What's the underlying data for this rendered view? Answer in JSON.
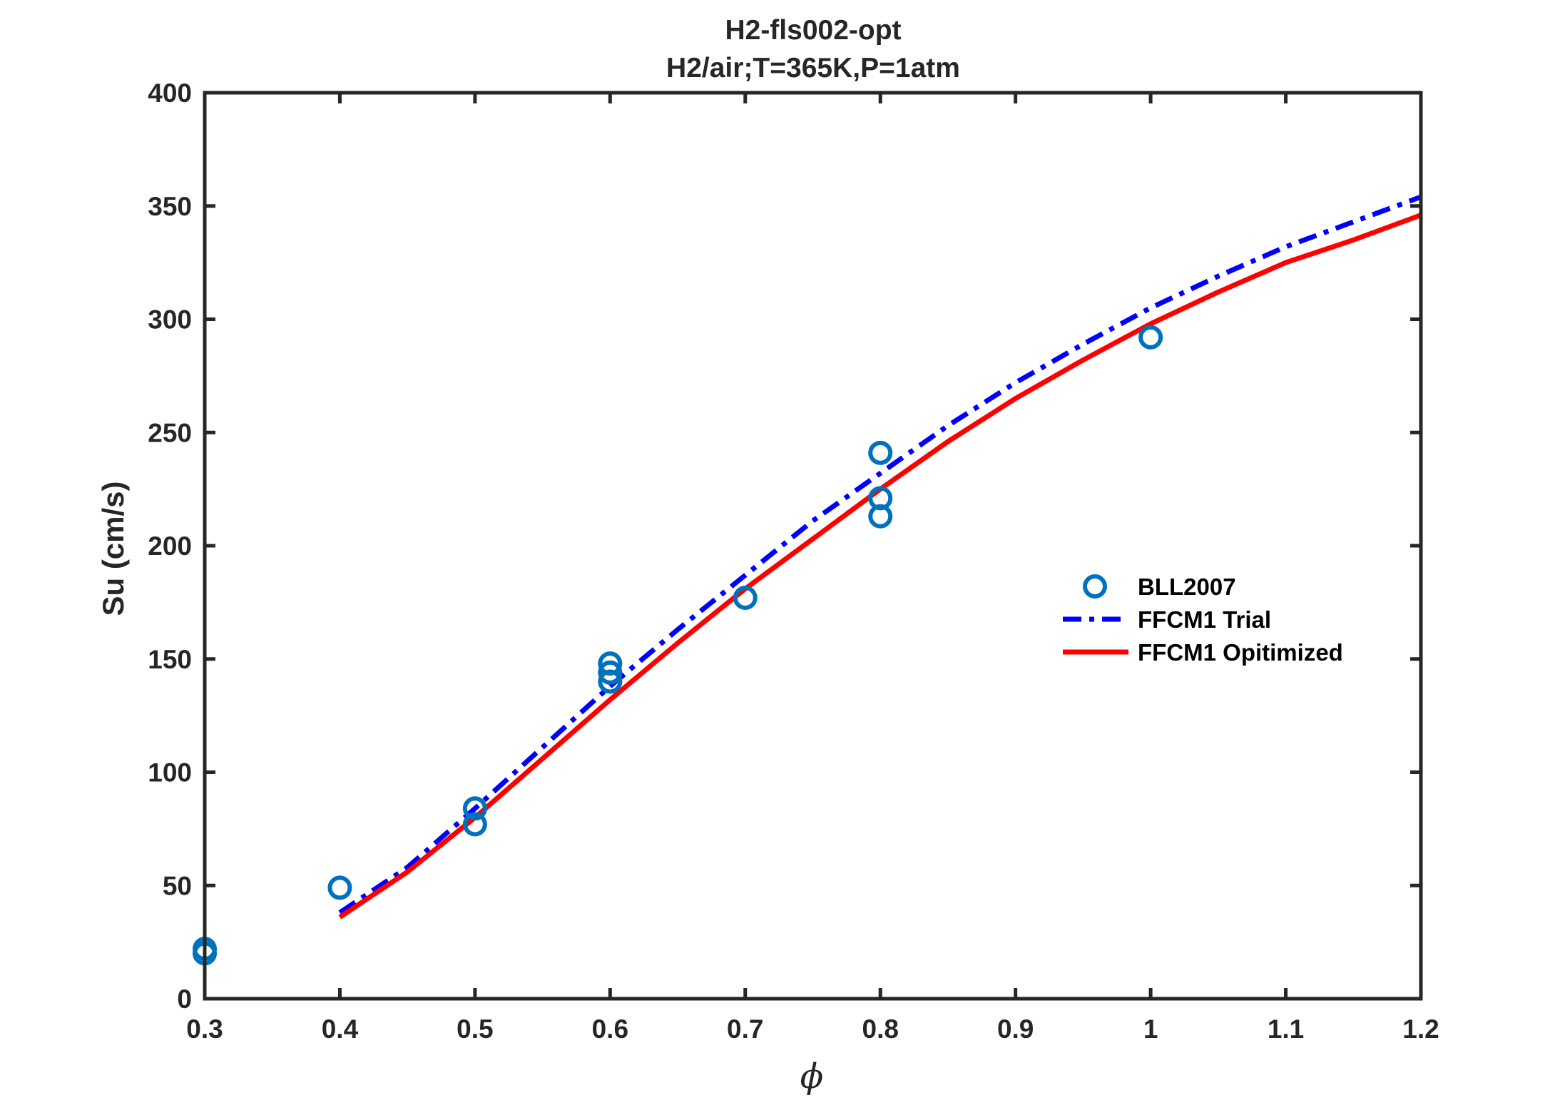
{
  "chart_data": {
    "type": "line",
    "title_lines": [
      "H2-fls002-opt",
      "H2/air;T=365K,P=1atm"
    ],
    "xlabel": "ϕ",
    "ylabel": "Su (cm/s)",
    "xlim": [
      0.3,
      1.2
    ],
    "ylim": [
      0,
      400
    ],
    "xticks": [
      0.3,
      0.4,
      0.5,
      0.6,
      0.7,
      0.8,
      0.9,
      1.0,
      1.1,
      1.2
    ],
    "xtick_labels": [
      "0.3",
      "0.4",
      "0.5",
      "0.6",
      "0.7",
      "0.8",
      "0.9",
      "1",
      "1.1",
      "1.2"
    ],
    "yticks": [
      0,
      50,
      100,
      150,
      200,
      250,
      300,
      350,
      400
    ],
    "ytick_labels": [
      "0",
      "50",
      "100",
      "150",
      "200",
      "250",
      "300",
      "350",
      "400"
    ],
    "grid": false,
    "legend_position": "right-middle",
    "series": [
      {
        "name": "BLL2007",
        "kind": "scatter",
        "marker": "circle",
        "color": "#0072BD",
        "points": [
          [
            0.3,
            20
          ],
          [
            0.3,
            22
          ],
          [
            0.4,
            49
          ],
          [
            0.5,
            77
          ],
          [
            0.5,
            84
          ],
          [
            0.6,
            140
          ],
          [
            0.6,
            144
          ],
          [
            0.6,
            148
          ],
          [
            0.7,
            177
          ],
          [
            0.8,
            213
          ],
          [
            0.8,
            221
          ],
          [
            0.8,
            241
          ],
          [
            1.0,
            292
          ]
        ]
      },
      {
        "name": "FFCM1 Trial",
        "kind": "line",
        "style": "dashdot",
        "color": "#0000FF",
        "points": [
          [
            0.4,
            38
          ],
          [
            0.45,
            58
          ],
          [
            0.5,
            84
          ],
          [
            0.55,
            111
          ],
          [
            0.6,
            138
          ],
          [
            0.65,
            163
          ],
          [
            0.7,
            187
          ],
          [
            0.75,
            211
          ],
          [
            0.8,
            232
          ],
          [
            0.85,
            253
          ],
          [
            0.9,
            272
          ],
          [
            0.95,
            289
          ],
          [
            1.0,
            305
          ],
          [
            1.05,
            319
          ],
          [
            1.1,
            332
          ],
          [
            1.15,
            343
          ],
          [
            1.2,
            354
          ]
        ]
      },
      {
        "name": "FFCM1 Opitimized",
        "kind": "line",
        "style": "solid",
        "color": "#FF0000",
        "points": [
          [
            0.4,
            36
          ],
          [
            0.45,
            56
          ],
          [
            0.5,
            80
          ],
          [
            0.55,
            106
          ],
          [
            0.6,
            132
          ],
          [
            0.65,
            157
          ],
          [
            0.7,
            181
          ],
          [
            0.75,
            203
          ],
          [
            0.8,
            225
          ],
          [
            0.85,
            246
          ],
          [
            0.9,
            265
          ],
          [
            0.95,
            282
          ],
          [
            1.0,
            298
          ],
          [
            1.05,
            312
          ],
          [
            1.1,
            325
          ],
          [
            1.15,
            335
          ],
          [
            1.2,
            346
          ]
        ]
      }
    ]
  }
}
